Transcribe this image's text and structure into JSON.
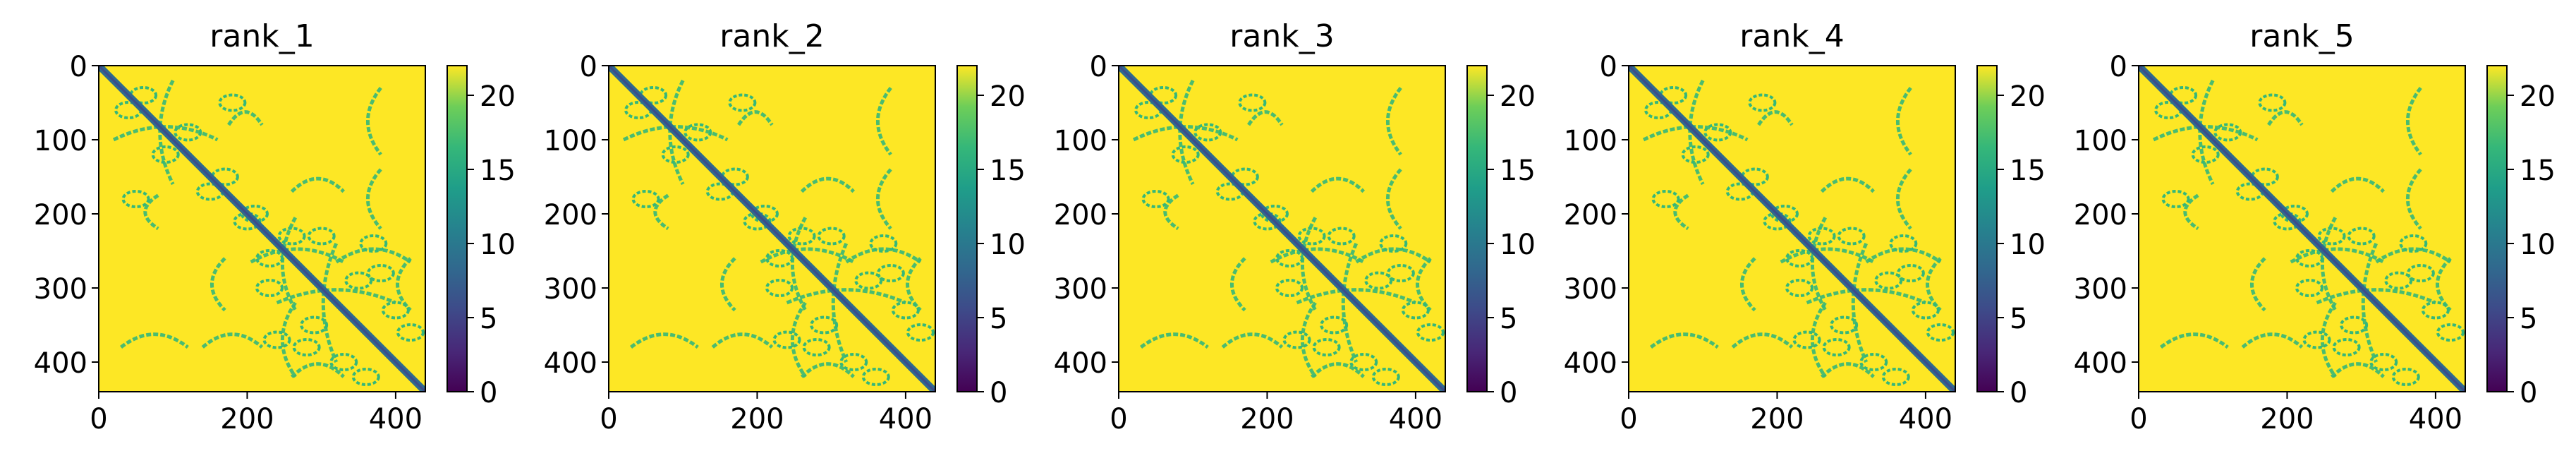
{
  "chart_data": {
    "type": "heatmap",
    "colormap": "viridis",
    "diagonal_color": "#2f6b8e",
    "contact_color": "#35b779",
    "background_color": "#fde725",
    "matrix_size": 440,
    "colorbar_range": [
      0,
      22
    ],
    "colorbar_ticks": [
      0,
      5,
      10,
      15,
      20
    ],
    "x_ticks": [
      0,
      200,
      400
    ],
    "y_ticks": [
      0,
      100,
      200,
      300,
      400
    ],
    "contact_arcs": [
      [
        100,
        20,
        160
      ],
      [
        80,
        175,
        220
      ],
      [
        265,
        205,
        330
      ],
      [
        265,
        320,
        420
      ],
      [
        320,
        240,
        400
      ],
      [
        170,
        260,
        330
      ],
      [
        380,
        30,
        120
      ],
      [
        380,
        140,
        220
      ],
      [
        420,
        260,
        330
      ]
    ],
    "contact_blobs": [
      [
        60,
        40
      ],
      [
        120,
        90
      ],
      [
        150,
        170
      ],
      [
        210,
        200
      ],
      [
        230,
        260
      ],
      [
        300,
        230
      ],
      [
        350,
        290
      ],
      [
        280,
        380
      ],
      [
        330,
        400
      ],
      [
        240,
        370
      ],
      [
        360,
        420
      ],
      [
        50,
        180
      ]
    ],
    "panels": [
      {
        "title": "rank_1"
      },
      {
        "title": "rank_2"
      },
      {
        "title": "rank_3"
      },
      {
        "title": "rank_4"
      },
      {
        "title": "rank_5"
      }
    ]
  }
}
